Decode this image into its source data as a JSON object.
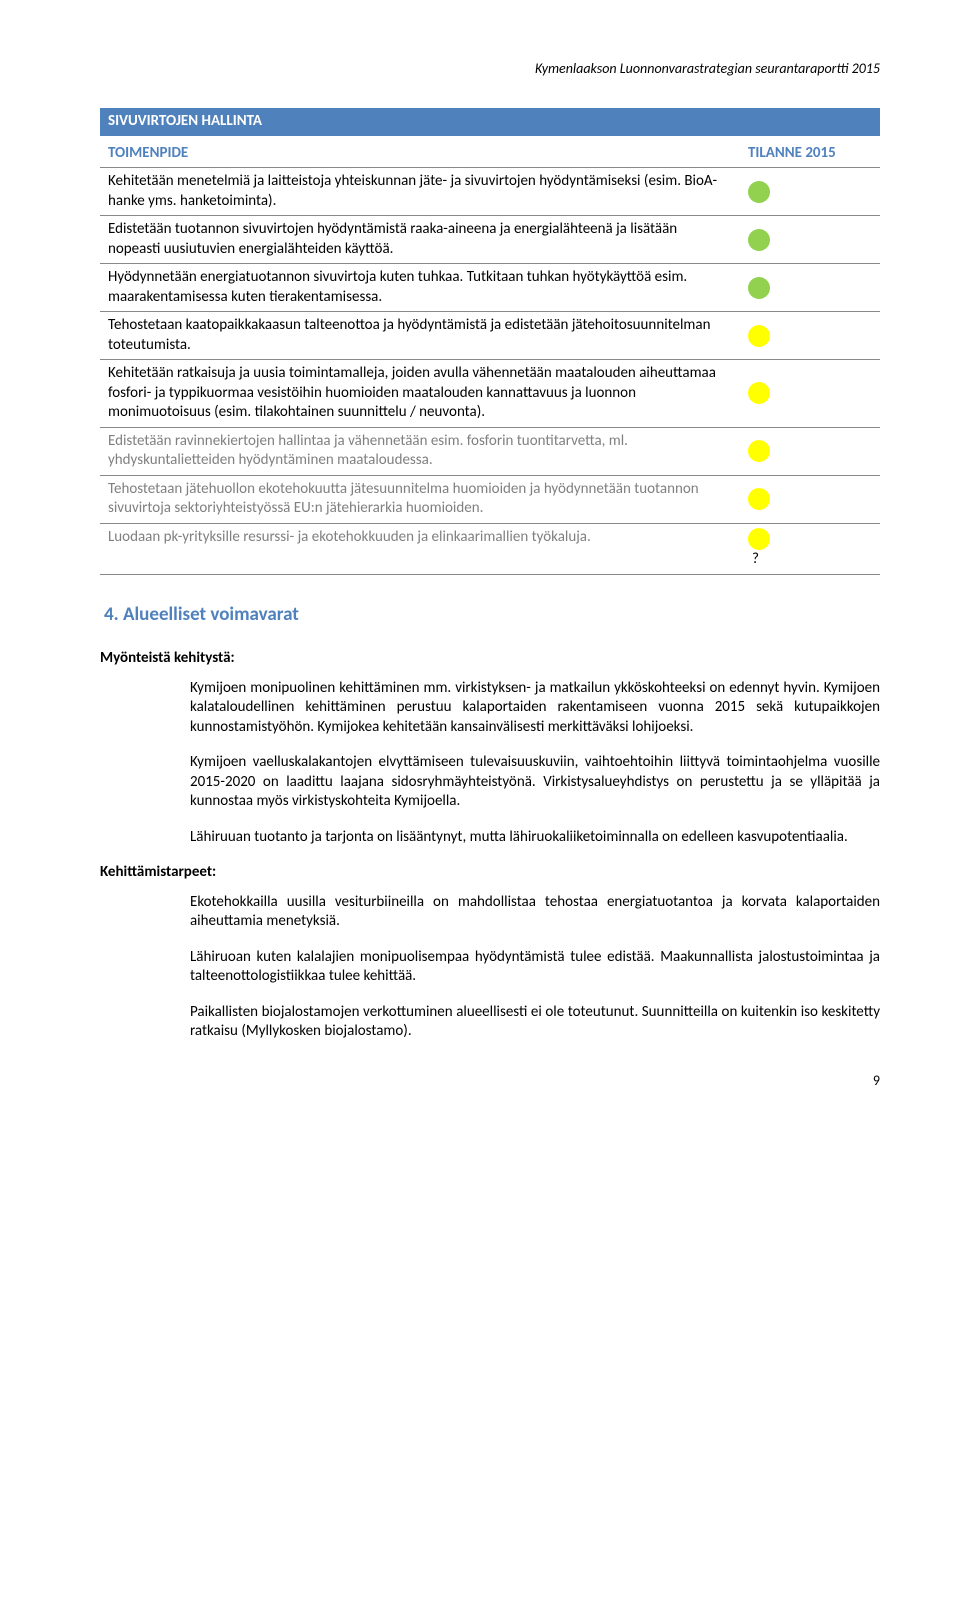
{
  "header": "Kymenlaakson Luonnonvarastrategian seurantaraportti 2015",
  "section_title": "SIVUVIRTOJEN HALLINTA",
  "col_toimenpide": "TOIMENPIDE",
  "col_tilanne": "TILANNE 2015",
  "colors": {
    "green": "#92d050",
    "yellow": "#ffff00",
    "blue": "#4f81bd",
    "grey": "#808080"
  },
  "rows": [
    {
      "text": "Kehitetään menetelmiä ja laitteistoja yhteiskunnan jäte- ja sivuvirtojen hyödyntämiseksi (esim. BioA-hanke yms. hanketoiminta).",
      "status": "green",
      "grey": false
    },
    {
      "text": "Edistetään tuotannon sivuvirtojen hyödyntämistä raaka-aineena ja energialähteenä ja lisätään nopeasti uusiutuvien energialähteiden käyttöä.",
      "status": "green",
      "grey": false
    },
    {
      "text": "Hyödynnetään energiatuotannon sivuvirtoja kuten tuhkaa. Tutkitaan tuhkan hyötykäyttöä esim. maarakentamisessa kuten tierakentamisessa.",
      "status": "green",
      "grey": false
    },
    {
      "text": "Tehostetaan kaatopaikkakaasun talteenottoa ja hyödyntämistä ja edistetään jätehoitosuunnitelman toteutumista.",
      "status": "yellow",
      "grey": false
    },
    {
      "text": "Kehitetään ratkaisuja ja uusia toimintamalleja, joiden avulla vähennetään maatalouden aiheuttamaa fosfori- ja typpikuormaa vesistöihin huomioiden maatalouden kannattavuus ja luonnon monimuotoisuus (esim. tilakohtainen suunnittelu / neuvonta).",
      "status": "yellow",
      "grey": false
    },
    {
      "text": "Edistetään ravinnekiertojen hallintaa ja vähennetään esim. fosforin tuontitarvetta, ml. yhdyskuntalietteiden hyödyntäminen maataloudessa.",
      "status": "yellow",
      "grey": true
    },
    {
      "text": "Tehostetaan jätehuollon ekotehokuutta jätesuunnitelma huomioiden ja hyödynnetään tuotannon sivuvirtoja sektoriyhteistyössä EU:n jätehierarkia huomioiden.",
      "status": "yellow",
      "grey": true
    },
    {
      "text": "Luodaan pk-yrityksille resurssi- ja ekotehokkuuden ja elinkaarimallien työkaluja.",
      "status": "yellow",
      "grey": true,
      "q": "?"
    }
  ],
  "h2": "4. Alueelliset voimavarat",
  "pos_title": "Myönteistä kehitystä:",
  "pos_paras": [
    "Kymijoen monipuolinen kehittäminen mm. virkistyksen- ja matkailun ykköskohteeksi on edennyt hyvin. Kymijoen kalataloudellinen kehittäminen perustuu kalaportaiden rakentamiseen vuonna 2015 sekä kutupaikkojen kunnostamistyöhön. Kymijokea kehitetään kansainvälisesti merkittäväksi lohijoeksi.",
    "Kymijoen vaelluskalakantojen elvyttämiseen tulevaisuuskuviin, vaihtoehtoihin liittyvä toimintaohjelma vuosille 2015-2020 on laadittu laajana sidosryhmäyhteistyönä. Virkistysalueyhdistys on perustettu ja se ylläpitää ja kunnostaa myös virkistyskohteita Kymijoella.",
    "Lähiruuan tuotanto ja tarjonta on lisääntynyt, mutta lähiruokaliiketoiminnalla on edelleen kasvupotentiaalia."
  ],
  "dev_title": "Kehittämistarpeet:",
  "dev_paras": [
    "Ekotehokkailla uusilla vesiturbiineilla on mahdollistaa tehostaa energiatuotantoa ja korvata kalaportaiden aiheuttamia menetyksiä.",
    "Lähiruoan kuten kalalajien monipuolisempaa hyödyntämistä tulee edistää. Maakunnallista jalostustoimintaa ja talteenottologistiikkaa tulee kehittää.",
    "Paikallisten biojalostamojen verkottuminen alueellisesti ei ole toteutunut. Suunnitteilla on kuitenkin iso keskitetty ratkaisu (Myllykosken biojalostamo)."
  ],
  "pagenum": "9"
}
